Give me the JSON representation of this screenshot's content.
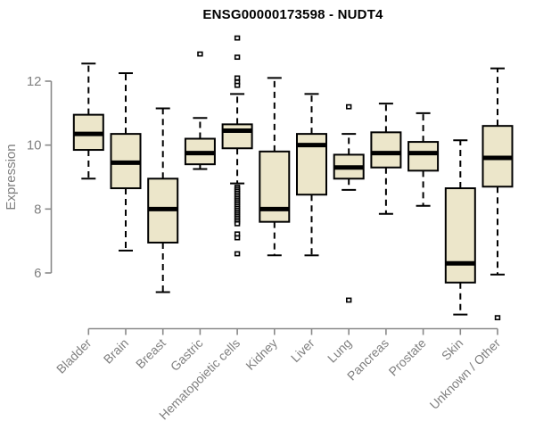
{
  "title": "ENSG00000173598 - NUDT4",
  "colors": {
    "box_fill": "#ECE6CA",
    "box_stroke": "#000000",
    "median": "#000000",
    "outlier_fill": "#ffffff",
    "axis": "#898989",
    "tick_text": "#808080",
    "title_text": "#000000",
    "background": "#ffffff"
  },
  "chart_data": {
    "type": "boxplot",
    "title": "ENSG00000173598 - NUDT4",
    "xlabel": "",
    "ylabel": "Expression",
    "yticks": [
      6,
      8,
      10,
      12
    ],
    "ylim": [
      4.3,
      13.6
    ],
    "grid": false,
    "legend": "none",
    "categories": [
      "Bladder",
      "Brain",
      "Breast",
      "Gastric",
      "Hematopoietic cells",
      "Kidney",
      "Liver",
      "Lung",
      "Pancreas",
      "Prostate",
      "Skin",
      "Unknown / Other"
    ],
    "series": [
      {
        "name": "Bladder",
        "low": 8.95,
        "q1": 9.85,
        "median": 10.35,
        "q3": 10.95,
        "high": 12.55,
        "outliers": []
      },
      {
        "name": "Brain",
        "low": 6.7,
        "q1": 8.65,
        "median": 9.45,
        "q3": 10.35,
        "high": 12.25,
        "outliers": []
      },
      {
        "name": "Breast",
        "low": 5.4,
        "q1": 6.95,
        "median": 8.0,
        "q3": 8.95,
        "high": 11.15,
        "outliers": []
      },
      {
        "name": "Gastric",
        "low": 9.25,
        "q1": 9.4,
        "median": 9.75,
        "q3": 10.2,
        "high": 10.85,
        "outliers": [
          12.85
        ]
      },
      {
        "name": "Hematopoietic cells",
        "low": 8.8,
        "q1": 9.9,
        "median": 10.45,
        "q3": 10.65,
        "high": 11.6,
        "outliers": [
          13.35,
          12.75,
          12.1,
          11.97,
          11.87,
          8.68,
          8.62,
          8.56,
          8.5,
          8.44,
          8.38,
          8.32,
          8.26,
          8.2,
          8.14,
          8.08,
          8.02,
          7.96,
          7.9,
          7.84,
          7.78,
          7.72,
          7.66,
          7.6,
          7.54,
          7.22,
          7.1,
          6.6
        ]
      },
      {
        "name": "Kidney",
        "low": 6.55,
        "q1": 7.6,
        "median": 8.0,
        "q3": 9.8,
        "high": 12.1,
        "outliers": []
      },
      {
        "name": "Liver",
        "low": 6.55,
        "q1": 8.45,
        "median": 10.0,
        "q3": 10.35,
        "high": 11.6,
        "outliers": []
      },
      {
        "name": "Lung",
        "low": 8.6,
        "q1": 8.95,
        "median": 9.3,
        "q3": 9.7,
        "high": 10.35,
        "outliers": [
          11.2,
          5.15
        ]
      },
      {
        "name": "Pancreas",
        "low": 7.85,
        "q1": 9.3,
        "median": 9.75,
        "q3": 10.4,
        "high": 11.3,
        "outliers": []
      },
      {
        "name": "Prostate",
        "low": 8.1,
        "q1": 9.2,
        "median": 9.75,
        "q3": 10.1,
        "high": 11.0,
        "outliers": []
      },
      {
        "name": "Skin",
        "low": 4.7,
        "q1": 5.7,
        "median": 6.3,
        "q3": 8.65,
        "high": 10.15,
        "outliers": []
      },
      {
        "name": "Unknown / Other",
        "low": 5.95,
        "q1": 8.7,
        "median": 9.6,
        "q3": 10.6,
        "high": 12.4,
        "outliers": [
          4.6
        ]
      }
    ]
  }
}
